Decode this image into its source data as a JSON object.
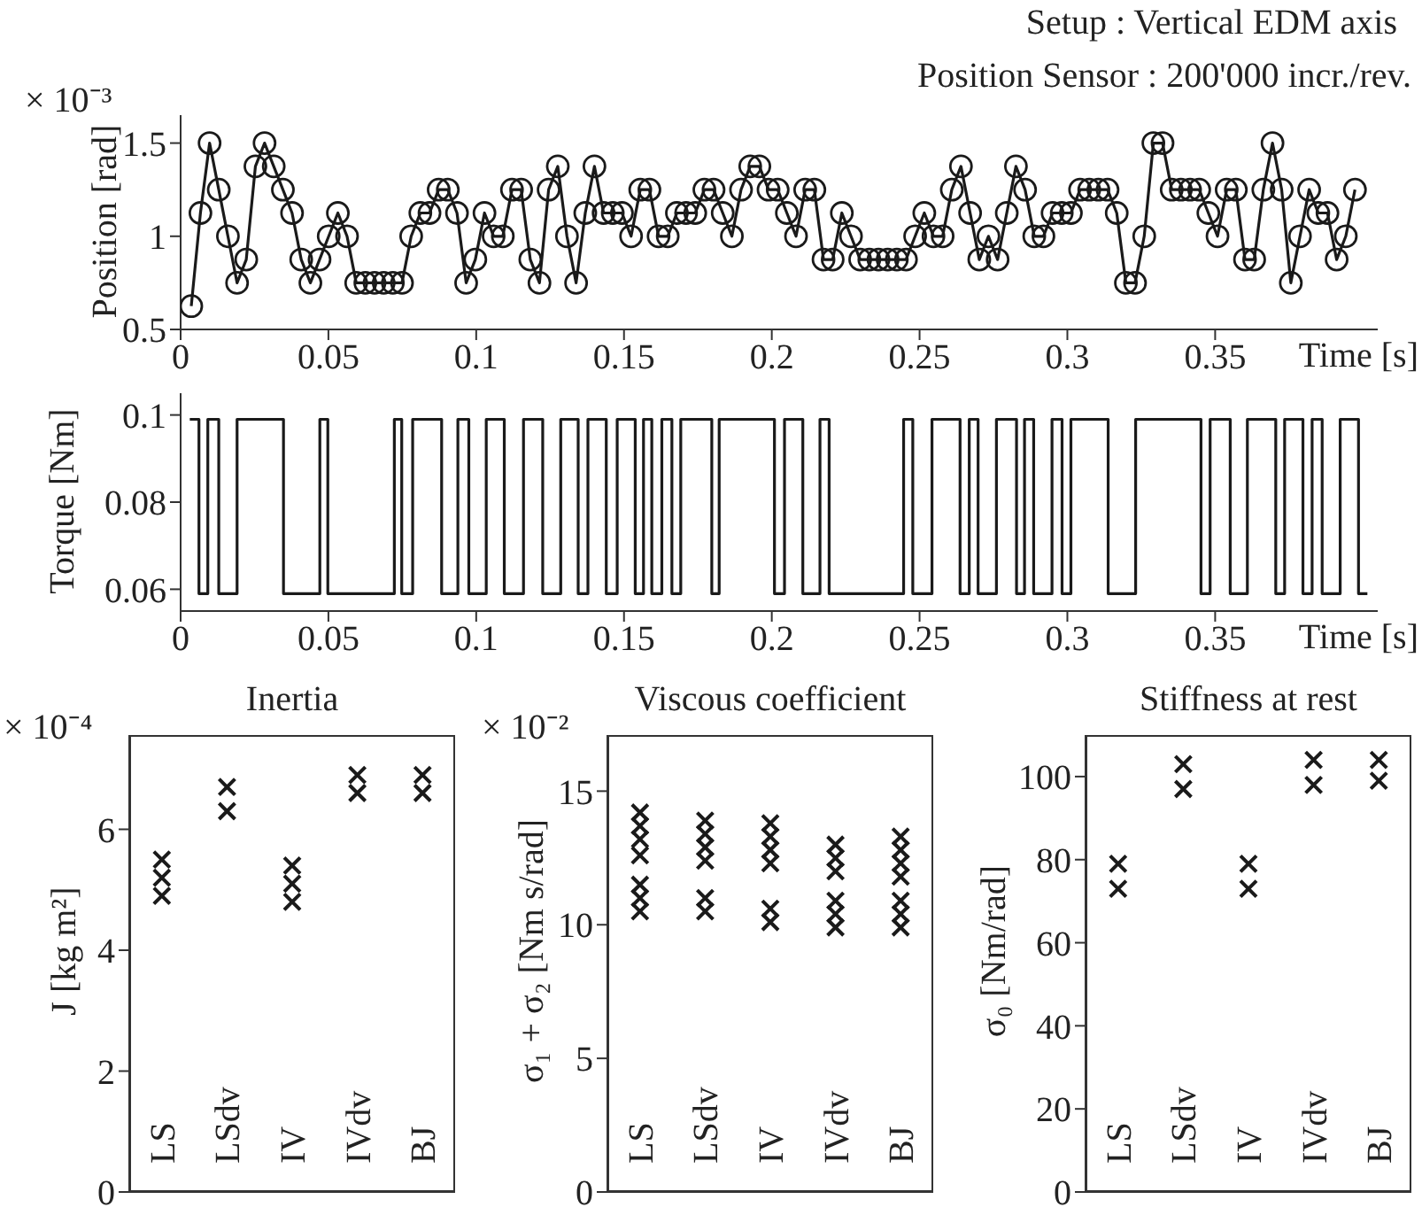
{
  "chart_data": [
    {
      "type": "line",
      "marker": "circle",
      "xlabel": "Time [s]",
      "ylabel": "Position [rad]",
      "annotations": [
        "× 10⁻³",
        "Setup : Vertical EDM axis",
        "Position Sensor : 200'000 incr./rev."
      ],
      "xlim": [
        0,
        0.405
      ],
      "xticks": [
        0,
        0.05,
        0.1,
        0.15,
        0.2,
        0.25,
        0.3,
        0.35
      ],
      "ylim": [
        0.5,
        1.65
      ],
      "yticks": [
        0.5,
        1,
        1.5
      ],
      "x": [
        0.0036,
        0.0067,
        0.0098,
        0.0129,
        0.016,
        0.0191,
        0.0222,
        0.0253,
        0.0284,
        0.0315,
        0.0346,
        0.0377,
        0.0408,
        0.0439,
        0.047,
        0.0501,
        0.0532,
        0.0563,
        0.0594,
        0.0625,
        0.0656,
        0.0687,
        0.0718,
        0.0749,
        0.078,
        0.0811,
        0.0842,
        0.0873,
        0.0904,
        0.0935,
        0.0966,
        0.0997,
        0.1028,
        0.1059,
        0.109,
        0.1121,
        0.1152,
        0.1183,
        0.1214,
        0.1245,
        0.1276,
        0.1307,
        0.1338,
        0.1369,
        0.14,
        0.1431,
        0.1462,
        0.1493,
        0.1524,
        0.1555,
        0.1586,
        0.1617,
        0.1648,
        0.1679,
        0.171,
        0.1741,
        0.1772,
        0.1803,
        0.1834,
        0.1865,
        0.1896,
        0.1927,
        0.1958,
        0.1989,
        0.202,
        0.2051,
        0.2082,
        0.2113,
        0.2144,
        0.2175,
        0.2206,
        0.2237,
        0.2268,
        0.2299,
        0.233,
        0.2361,
        0.2392,
        0.2423,
        0.2454,
        0.2485,
        0.2516,
        0.2547,
        0.2578,
        0.2609,
        0.264,
        0.2671,
        0.2702,
        0.2733,
        0.2764,
        0.2795,
        0.2826,
        0.2857,
        0.2888,
        0.2919,
        0.295,
        0.2981,
        0.3012,
        0.3043,
        0.3074,
        0.3105,
        0.3136,
        0.3167,
        0.3198,
        0.3229,
        0.326,
        0.3291,
        0.3322,
        0.3353,
        0.3384,
        0.3415,
        0.3446,
        0.3477,
        0.3508,
        0.3539,
        0.357,
        0.3601,
        0.3632,
        0.3663,
        0.3694,
        0.3725,
        0.3756,
        0.3787,
        0.3818,
        0.3849,
        0.388,
        0.3911,
        0.3942,
        0.3973
      ],
      "series": [
        {
          "color": "#1a1a1a",
          "values": [
            0.625,
            1.125,
            1.5,
            1.25,
            1.0,
            0.75,
            0.875,
            1.375,
            1.5,
            1.375,
            1.25,
            1.125,
            0.875,
            0.75,
            0.875,
            1.0,
            1.125,
            1.0,
            0.75,
            0.75,
            0.75,
            0.75,
            0.75,
            0.75,
            1.0,
            1.125,
            1.125,
            1.25,
            1.25,
            1.125,
            0.75,
            0.875,
            1.125,
            1.0,
            1.0,
            1.25,
            1.25,
            0.875,
            0.75,
            1.25,
            1.375,
            1.0,
            0.75,
            1.125,
            1.375,
            1.125,
            1.125,
            1.125,
            1.0,
            1.25,
            1.25,
            1.0,
            1.0,
            1.125,
            1.125,
            1.125,
            1.25,
            1.25,
            1.125,
            1.0,
            1.25,
            1.375,
            1.375,
            1.25,
            1.25,
            1.125,
            1.0,
            1.25,
            1.25,
            0.875,
            0.875,
            1.125,
            1.0,
            0.875,
            0.875,
            0.875,
            0.875,
            0.875,
            0.875,
            1.0,
            1.125,
            1.0,
            1.0,
            1.25,
            1.375,
            1.125,
            0.875,
            1.0,
            0.875,
            1.125,
            1.375,
            1.25,
            1.0,
            1.0,
            1.125,
            1.125,
            1.125,
            1.25,
            1.25,
            1.25,
            1.25,
            1.125,
            0.75,
            0.75,
            1.0,
            1.5,
            1.5,
            1.25,
            1.25,
            1.25,
            1.25,
            1.125,
            1.0,
            1.25,
            1.25,
            0.875,
            0.875,
            1.25,
            1.5,
            1.25,
            0.75,
            1.0,
            1.25,
            1.125,
            1.125,
            0.875,
            1.0,
            1.25
          ]
        }
      ]
    },
    {
      "type": "step",
      "xlabel": "Time [s]",
      "ylabel": "Torque [Nm]",
      "xlim": [
        0,
        0.405
      ],
      "xticks": [
        0,
        0.05,
        0.1,
        0.15,
        0.2,
        0.25,
        0.3,
        0.35
      ],
      "ylim": [
        0.055,
        0.105
      ],
      "yticks": [
        0.06,
        0.08,
        0.1
      ],
      "x": [
        0.0031,
        0.0062,
        0.0092,
        0.0129,
        0.0191,
        0.0348,
        0.0471,
        0.0498,
        0.0723,
        0.0748,
        0.0785,
        0.0883,
        0.0938,
        0.0975,
        0.1034,
        0.1095,
        0.116,
        0.1225,
        0.1286,
        0.1345,
        0.1378,
        0.144,
        0.1477,
        0.1538,
        0.1566,
        0.1594,
        0.1628,
        0.1662,
        0.1692,
        0.1797,
        0.1822,
        0.2009,
        0.2043,
        0.2105,
        0.2163,
        0.2194,
        0.2446,
        0.2477,
        0.2542,
        0.2637,
        0.2668,
        0.2698,
        0.276,
        0.2828,
        0.2855,
        0.2886,
        0.2948,
        0.2982,
        0.3012,
        0.3138,
        0.3231,
        0.3452,
        0.3483,
        0.3551,
        0.3609,
        0.3705,
        0.3735,
        0.3797,
        0.3828,
        0.3862,
        0.3923,
        0.3985,
        0.4015
      ],
      "series": [
        {
          "color": "#1a1a1a",
          "values": [
            0.099,
            0.059,
            0.099,
            0.059,
            0.099,
            0.059,
            0.099,
            0.059,
            0.099,
            0.059,
            0.099,
            0.059,
            0.099,
            0.059,
            0.099,
            0.059,
            0.099,
            0.059,
            0.099,
            0.059,
            0.099,
            0.059,
            0.099,
            0.059,
            0.099,
            0.059,
            0.099,
            0.059,
            0.099,
            0.059,
            0.099,
            0.059,
            0.099,
            0.059,
            0.099,
            0.059,
            0.099,
            0.059,
            0.099,
            0.059,
            0.099,
            0.059,
            0.099,
            0.059,
            0.099,
            0.059,
            0.099,
            0.059,
            0.099,
            0.059,
            0.099,
            0.059,
            0.099,
            0.059,
            0.099,
            0.059,
            0.099,
            0.059,
            0.099,
            0.059,
            0.099,
            0.059,
            0.059
          ]
        }
      ]
    },
    {
      "type": "scatter",
      "marker": "cross",
      "title": "Inertia",
      "ylabel": "J  [kg m²]",
      "annotations": [
        "× 10⁻⁴"
      ],
      "categories": [
        "LS",
        "LSdv",
        "IV",
        "IVdv",
        "BJ"
      ],
      "ylim": [
        0,
        7.56
      ],
      "yticks": [
        0,
        2,
        4,
        6
      ],
      "series": [
        {
          "color": "#1a1a1a",
          "x": [
            "LS",
            "LS",
            "LS",
            "LSdv",
            "LSdv",
            "IV",
            "IV",
            "IV",
            "IVdv",
            "IVdv",
            "BJ",
            "BJ"
          ],
          "values": [
            4.9,
            5.2,
            5.5,
            6.3,
            6.7,
            4.8,
            5.1,
            5.4,
            6.6,
            6.9,
            6.6,
            6.9
          ]
        }
      ]
    },
    {
      "type": "scatter",
      "marker": "cross",
      "title": "Viscous coefficient",
      "ylabel": "σ₁ + σ₂  [Nm s/rad]",
      "annotations": [
        "× 10⁻²"
      ],
      "categories": [
        "LS",
        "LSdv",
        "IV",
        "IVdv",
        "BJ"
      ],
      "ylim": [
        0,
        17.1
      ],
      "yticks": [
        0,
        5,
        10,
        15
      ],
      "series": [
        {
          "color": "#1a1a1a",
          "x": [
            "LS",
            "LS",
            "LS",
            "LS",
            "LS",
            "LS",
            "LS",
            "LSdv",
            "LSdv",
            "LSdv",
            "LSdv",
            "LSdv",
            "LSdv",
            "IV",
            "IV",
            "IV",
            "IV",
            "IV",
            "IV",
            "IVdv",
            "IVdv",
            "IVdv",
            "IVdv",
            "IVdv",
            "IVdv",
            "BJ",
            "BJ",
            "BJ",
            "BJ",
            "BJ",
            "BJ",
            "BJ"
          ],
          "values": [
            10.5,
            11.0,
            11.5,
            12.6,
            13.2,
            13.7,
            14.2,
            10.5,
            11.0,
            12.4,
            12.9,
            13.4,
            13.9,
            10.1,
            10.6,
            12.3,
            12.8,
            13.3,
            13.8,
            9.9,
            10.4,
            10.9,
            12.0,
            12.5,
            13.0,
            9.9,
            10.4,
            10.9,
            11.8,
            12.3,
            12.8,
            13.3
          ]
        }
      ]
    },
    {
      "type": "scatter",
      "marker": "cross",
      "title": "Stiffness at rest",
      "ylabel": "σ₀  [Nm/rad]",
      "categories": [
        "LS",
        "LSdv",
        "IV",
        "IVdv",
        "BJ"
      ],
      "ylim": [
        0,
        110
      ],
      "yticks": [
        0,
        20,
        40,
        60,
        80,
        100
      ],
      "series": [
        {
          "color": "#1a1a1a",
          "x": [
            "LS",
            "LS",
            "LSdv",
            "LSdv",
            "IV",
            "IV",
            "IVdv",
            "IVdv",
            "BJ",
            "BJ"
          ],
          "values": [
            73,
            79,
            97,
            103,
            73,
            79,
            98,
            104,
            99,
            104
          ]
        }
      ]
    }
  ]
}
